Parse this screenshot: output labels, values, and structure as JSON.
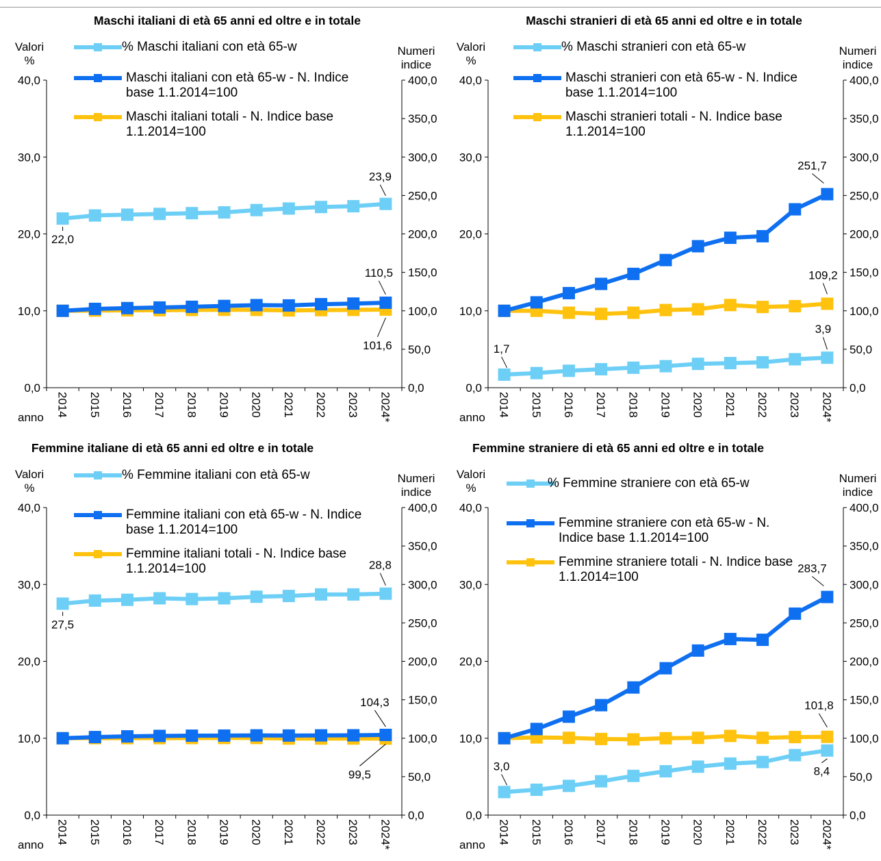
{
  "x_axis_title": "anno",
  "left_axis_title": [
    "Valori",
    "%"
  ],
  "right_axis_title": [
    "Numeri",
    "indice"
  ],
  "colors": {
    "light": "#6dcff6",
    "dark": "#0e6ff0",
    "gold": "#ffc20e"
  },
  "chart_data": [
    {
      "type": "line",
      "title": "Maschi italiani di età 65 anni ed oltre e in totale",
      "categories": [
        "2014",
        "2015",
        "2016",
        "2017",
        "2018",
        "2019",
        "2020",
        "2021",
        "2022",
        "2023",
        "2024*"
      ],
      "ylim_left": [
        0,
        40
      ],
      "ylim_right": [
        0,
        400
      ],
      "left_ticks": [
        "0,0",
        "10,0",
        "20,0",
        "30,0",
        "40,0"
      ],
      "right_ticks": [
        "0,0",
        "50,0",
        "100,0",
        "150,0",
        "200,0",
        "250,0",
        "300,0",
        "350,0",
        "400,0"
      ],
      "series": [
        {
          "name": "% Maschi italiani con età 65-w",
          "axis": "left",
          "color": "#6dcff6",
          "values": [
            22.0,
            22.4,
            22.5,
            22.6,
            22.7,
            22.8,
            23.1,
            23.3,
            23.5,
            23.6,
            23.9
          ]
        },
        {
          "name": "Maschi italiani con età 65-w - N. Indice base 1.1.2014=100",
          "axis": "right",
          "color": "#0e6ff0",
          "values": [
            100.0,
            102.5,
            103.5,
            104.3,
            105.2,
            106.3,
            107.4,
            107.0,
            108.6,
            109.4,
            110.5
          ]
        },
        {
          "name": "Maschi italiani totali - N. Indice base 1.1.2014=100",
          "axis": "right",
          "color": "#ffc20e",
          "values": [
            100.0,
            100.3,
            100.6,
            100.8,
            101.1,
            101.3,
            101.2,
            100.5,
            100.9,
            101.2,
            101.6
          ]
        }
      ],
      "legend_lines": [
        [
          "% Maschi italiani con età 65-w"
        ],
        [
          "Maschi italiani con età 65-w - N. Indice",
          "base 1.1.2014=100"
        ],
        [
          "Maschi italiani totali - N. Indice base",
          "1.1.2014=100"
        ]
      ],
      "data_labels": [
        {
          "text": "22,0",
          "series": 0,
          "index": 0
        },
        {
          "text": "23,9",
          "series": 0,
          "index": 10
        },
        {
          "text": "110,5",
          "series": 1,
          "index": 10
        },
        {
          "text": "101,6",
          "series": 2,
          "index": 10
        }
      ]
    },
    {
      "type": "line",
      "title": "Maschi stranieri di età 65 anni ed oltre e in totale",
      "categories": [
        "2014",
        "2015",
        "2016",
        "2017",
        "2018",
        "2019",
        "2020",
        "2021",
        "2022",
        "2023",
        "2024*"
      ],
      "ylim_left": [
        0,
        40
      ],
      "ylim_right": [
        0,
        400
      ],
      "left_ticks": [
        "0,0",
        "10,0",
        "20,0",
        "30,0",
        "40,0"
      ],
      "right_ticks": [
        "0,0",
        "50,0",
        "100,0",
        "150,0",
        "200,0",
        "250,0",
        "300,0",
        "350,0",
        "400,0"
      ],
      "series": [
        {
          "name": "% Maschi stranieri con età 65-w",
          "axis": "left",
          "color": "#6dcff6",
          "values": [
            1.7,
            1.9,
            2.2,
            2.4,
            2.6,
            2.8,
            3.1,
            3.2,
            3.3,
            3.7,
            3.9
          ]
        },
        {
          "name": "Maschi stranieri con età 65-w - N. Indice base 1.1.2014=100",
          "axis": "right",
          "color": "#0e6ff0",
          "values": [
            100.0,
            111.0,
            123.0,
            135.0,
            148.0,
            166.0,
            184.0,
            195.0,
            197.0,
            232.0,
            251.7
          ]
        },
        {
          "name": "Maschi stranieri totali - N. Indice base 1.1.2014=100",
          "axis": "right",
          "color": "#ffc20e",
          "values": [
            100.0,
            100.0,
            97.5,
            96.0,
            97.5,
            101.0,
            102.0,
            107.5,
            105.0,
            106.0,
            109.2
          ]
        }
      ],
      "legend_lines": [
        [
          "% Maschi stranieri con età 65-w"
        ],
        [
          "Maschi stranieri con età 65-w - N. Indice",
          "base 1.1.2014=100"
        ],
        [
          "Maschi stranieri totali - N. Indice base",
          "1.1.2014=100"
        ]
      ],
      "data_labels": [
        {
          "text": "1,7",
          "series": 0,
          "index": 0
        },
        {
          "text": "3,9",
          "series": 0,
          "index": 10
        },
        {
          "text": "251,7",
          "series": 1,
          "index": 10
        },
        {
          "text": "109,2",
          "series": 2,
          "index": 10
        }
      ]
    },
    {
      "type": "line",
      "title": "Femmine italiane di età 65 anni ed oltre e in totale",
      "categories": [
        "2014",
        "2015",
        "2016",
        "2017",
        "2018",
        "2019",
        "2020",
        "2021",
        "2022",
        "2023",
        "2024*"
      ],
      "ylim_left": [
        0,
        40
      ],
      "ylim_right": [
        0,
        400
      ],
      "left_ticks": [
        "0,0",
        "10,0",
        "20,0",
        "30,0",
        "40,0"
      ],
      "right_ticks": [
        "0,0",
        "50,0",
        "100,0",
        "150,0",
        "200,0",
        "250,0",
        "300,0",
        "350,0",
        "400,0"
      ],
      "series": [
        {
          "name": "% Femmine italiani con età 65-w",
          "axis": "left",
          "color": "#6dcff6",
          "values": [
            27.5,
            27.9,
            28.0,
            28.2,
            28.1,
            28.2,
            28.4,
            28.5,
            28.7,
            28.7,
            28.8
          ]
        },
        {
          "name": "Femmine italiani con età 65-w - N. Indice base 1.1.2014=100",
          "axis": "right",
          "color": "#0e6ff0",
          "values": [
            100.0,
            101.5,
            102.4,
            103.0,
            103.3,
            103.4,
            103.7,
            103.5,
            103.7,
            103.8,
            104.3
          ]
        },
        {
          "name": "Femmine italiani totali - N. Indice base 1.1.2014=100",
          "axis": "right",
          "color": "#ffc20e",
          "values": [
            100.0,
            100.1,
            100.1,
            100.1,
            100.2,
            100.3,
            100.3,
            99.6,
            99.6,
            99.6,
            99.5
          ]
        }
      ],
      "legend_lines": [
        [
          "% Femmine italiani con età 65-w"
        ],
        [
          "Femmine italiani con età 65-w - N. Indice",
          "base 1.1.2014=100"
        ],
        [
          "Femmine italiani totali - N. Indice base",
          "1.1.2014=100"
        ]
      ],
      "data_labels": [
        {
          "text": "27,5",
          "series": 0,
          "index": 0
        },
        {
          "text": "28,8",
          "series": 0,
          "index": 10
        },
        {
          "text": "104,3",
          "series": 1,
          "index": 10
        },
        {
          "text": "99,5",
          "series": 2,
          "index": 10
        }
      ]
    },
    {
      "type": "line",
      "title": "Femmine straniere di età 65 anni ed oltre e in totale",
      "categories": [
        "2014",
        "2015",
        "2016",
        "2017",
        "2018",
        "2019",
        "2020",
        "2021",
        "2022",
        "2023",
        "2024*"
      ],
      "ylim_left": [
        0,
        40
      ],
      "ylim_right": [
        0,
        400
      ],
      "left_ticks": [
        "0,0",
        "10,0",
        "20,0",
        "30,0",
        "40,0"
      ],
      "right_ticks": [
        "0,0",
        "50,0",
        "100,0",
        "150,0",
        "200,0",
        "250,0",
        "300,0",
        "350,0",
        "400,0"
      ],
      "series": [
        {
          "name": "% Femmine straniere con età 65-w",
          "axis": "left",
          "color": "#6dcff6",
          "values": [
            3.0,
            3.3,
            3.8,
            4.4,
            5.1,
            5.7,
            6.3,
            6.7,
            6.9,
            7.8,
            8.4
          ]
        },
        {
          "name": "Femmine straniere con età 65-w - N. Indice base 1.1.2014=100",
          "axis": "right",
          "color": "#0e6ff0",
          "values": [
            100.0,
            112.0,
            128.0,
            143.0,
            166.0,
            191.0,
            214.0,
            229.0,
            228.0,
            262.0,
            283.7
          ]
        },
        {
          "name": "Femmine straniere totali - N. Indice base 1.1.2014=100",
          "axis": "right",
          "color": "#ffc20e",
          "values": [
            100.0,
            101.0,
            100.5,
            99.0,
            98.5,
            100.0,
            100.5,
            103.0,
            100.5,
            101.5,
            101.8
          ]
        }
      ],
      "legend_lines": [
        [
          "% Femmine straniere con età 65-w"
        ],
        [
          "Femmine straniere con età 65-w - N.",
          "Indice base 1.1.2014=100"
        ],
        [
          "Femmine straniere totali - N. Indice base",
          "1.1.2014=100"
        ]
      ],
      "data_labels": [
        {
          "text": "3,0",
          "series": 0,
          "index": 0
        },
        {
          "text": "8,4",
          "series": 0,
          "index": 10
        },
        {
          "text": "283,7",
          "series": 1,
          "index": 10
        },
        {
          "text": "101,8",
          "series": 2,
          "index": 10
        }
      ]
    }
  ]
}
